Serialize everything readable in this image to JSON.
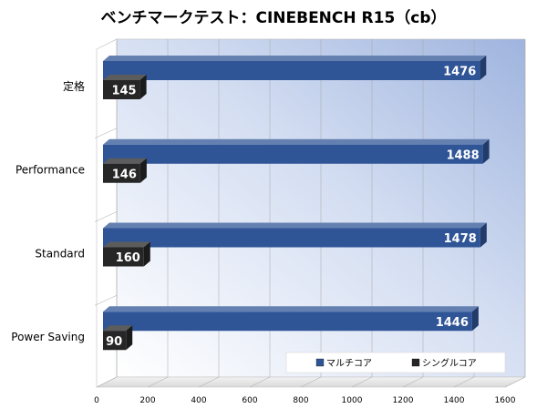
{
  "chart_data": {
    "type": "bar",
    "orientation": "horizontal",
    "title": "ベンチマークテスト：CINEBENCH R15（cb）",
    "categories": [
      "定格",
      "Performance",
      "Standard",
      "Power Saving"
    ],
    "series": [
      {
        "name": "マルチコア",
        "values": [
          1476,
          1488,
          1478,
          1446
        ],
        "color": "#2f5597"
      },
      {
        "name": "シングルコア",
        "values": [
          145,
          146,
          160,
          90
        ],
        "color": "#262626"
      }
    ],
    "xlim": [
      0,
      1600
    ],
    "xticks": [
      0,
      200,
      400,
      600,
      800,
      1000,
      1200,
      1400,
      1600
    ],
    "grid": true,
    "legend_position": "bottom-right",
    "style": "3d"
  }
}
